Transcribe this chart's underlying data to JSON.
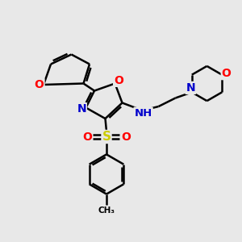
{
  "bg_color": "#e8e8e8",
  "bond_color": "#000000",
  "bond_width": 1.8,
  "atom_colors": {
    "O": "#ff0000",
    "N": "#0000cc",
    "S": "#cccc00",
    "H": "#006060",
    "C": "#000000"
  },
  "figsize": [
    3.0,
    3.0
  ],
  "dpi": 100,
  "xlim": [
    0,
    10
  ],
  "ylim": [
    0,
    10
  ]
}
